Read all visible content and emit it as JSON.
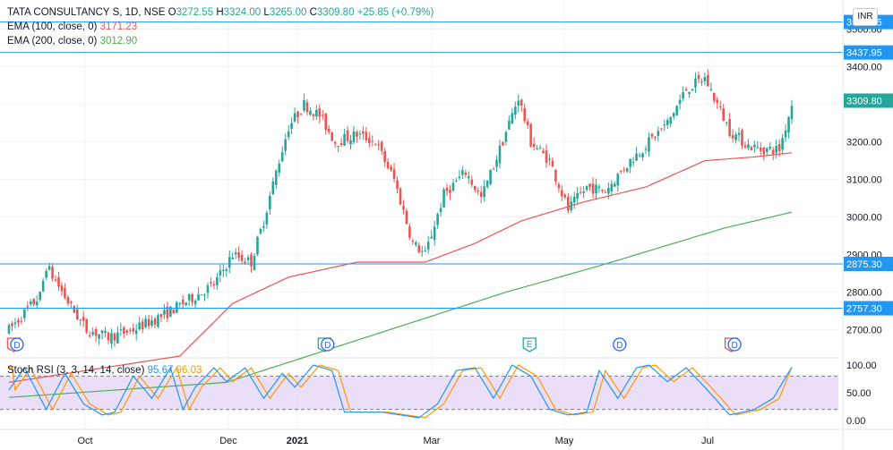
{
  "header": {
    "symbol": "TATA CONSULTANCY S, 1D, NSE",
    "ohlc": {
      "open_label": "O",
      "open": "3272.55",
      "high_label": "H",
      "high": "3324.00",
      "low_label": "L",
      "low": "3265.00",
      "close_label": "C",
      "close": "3309.80",
      "change": "+25.85 (+0.79%)"
    },
    "ema100": {
      "label": "EMA (100, close, 0)",
      "value": "3171.23"
    },
    "ema200": {
      "label": "EMA (200, close, 0)",
      "value": "3012.90"
    }
  },
  "currency": "INR",
  "stoch": {
    "label": "Stoch RSI (3, 3, 14, 14, close)",
    "k": "95.67",
    "d": "96.03"
  },
  "colors": {
    "up": "#26a69a",
    "down": "#ef5350",
    "ema100": "#ef5350",
    "ema200": "#4caf50",
    "hline": "#2196f3",
    "stoch_k": "#2196f3",
    "stoch_d": "#ff9800",
    "stoch_band": "#e6d6f7"
  },
  "chart_data": {
    "type": "candlestick",
    "price_axis": {
      "ylim": [
        2630,
        3530
      ],
      "ticks": [
        "2700.00",
        "2800.00",
        "2900.00",
        "3000.00",
        "3100.00",
        "3200.00",
        "3300.00",
        "3400.00",
        "3500.00"
      ]
    },
    "x_labels": [
      "Oct",
      "Dec",
      "2021",
      "Mar",
      "May",
      "Jul"
    ],
    "horizontal_lines": [
      {
        "value": 3519.05,
        "label": "3519.05"
      },
      {
        "value": 3437.95,
        "label": "3437.95"
      },
      {
        "value": 2875.3,
        "label": "2875.30"
      },
      {
        "value": 2757.3,
        "label": "2757.30"
      }
    ],
    "last_price": {
      "value": 3309.8,
      "label": "3309.80"
    },
    "anchors": [
      [
        0,
        2700
      ],
      [
        10,
        2790
      ],
      [
        12,
        2870
      ],
      [
        15,
        2830
      ],
      [
        20,
        2760
      ],
      [
        25,
        2700
      ],
      [
        32,
        2680
      ],
      [
        40,
        2700
      ],
      [
        50,
        2740
      ],
      [
        60,
        2790
      ],
      [
        66,
        2820
      ],
      [
        72,
        2900
      ],
      [
        78,
        2880
      ],
      [
        82,
        2990
      ],
      [
        86,
        3120
      ],
      [
        90,
        3240
      ],
      [
        95,
        3300
      ],
      [
        100,
        3270
      ],
      [
        105,
        3200
      ],
      [
        112,
        3220
      ],
      [
        118,
        3200
      ],
      [
        124,
        3100
      ],
      [
        130,
        2930
      ],
      [
        134,
        2900
      ],
      [
        140,
        3060
      ],
      [
        147,
        3120
      ],
      [
        152,
        3050
      ],
      [
        158,
        3180
      ],
      [
        164,
        3320
      ],
      [
        168,
        3200
      ],
      [
        174,
        3150
      ],
      [
        180,
        3020
      ],
      [
        186,
        3080
      ],
      [
        192,
        3070
      ],
      [
        200,
        3150
      ],
      [
        206,
        3200
      ],
      [
        212,
        3250
      ],
      [
        218,
        3340
      ],
      [
        224,
        3370
      ],
      [
        228,
        3300
      ],
      [
        232,
        3230
      ],
      [
        238,
        3190
      ],
      [
        242,
        3180
      ],
      [
        248,
        3180
      ],
      [
        252,
        3300
      ]
    ],
    "ema100_points": [
      [
        0,
        2560
      ],
      [
        55,
        2630
      ],
      [
        72,
        2770
      ],
      [
        90,
        2840
      ],
      [
        112,
        2880
      ],
      [
        134,
        2880
      ],
      [
        150,
        2930
      ],
      [
        165,
        2990
      ],
      [
        185,
        3040
      ],
      [
        205,
        3080
      ],
      [
        224,
        3150
      ],
      [
        240,
        3160
      ],
      [
        252,
        3171
      ]
    ],
    "ema200_points": [
      [
        0,
        2520
      ],
      [
        70,
        2560
      ],
      [
        100,
        2640
      ],
      [
        130,
        2720
      ],
      [
        160,
        2800
      ],
      [
        190,
        2870
      ],
      [
        210,
        2920
      ],
      [
        230,
        2970
      ],
      [
        252,
        3013
      ]
    ],
    "event_markers": [
      {
        "index": 1,
        "letter": "E",
        "kind": "earnings-red"
      },
      {
        "index": 2,
        "letter": "D",
        "kind": "dividend"
      },
      {
        "index": 101,
        "letter": "E",
        "kind": "earnings-green"
      },
      {
        "index": 102,
        "letter": "D",
        "kind": "dividend"
      },
      {
        "index": 167,
        "letter": "E",
        "kind": "earnings-green"
      },
      {
        "index": 196,
        "letter": "D",
        "kind": "dividend"
      },
      {
        "index": 232,
        "letter": "E",
        "kind": "earnings-red"
      },
      {
        "index": 233,
        "letter": "D",
        "kind": "dividend"
      }
    ],
    "stoch_axis": {
      "ylim": [
        0,
        100
      ],
      "ticks": [
        "100.00",
        "50.00",
        "0.00"
      ],
      "band": [
        20,
        80
      ]
    },
    "stoch_k_anchors": [
      [
        0,
        55
      ],
      [
        5,
        95
      ],
      [
        12,
        20
      ],
      [
        18,
        85
      ],
      [
        24,
        30
      ],
      [
        30,
        10
      ],
      [
        34,
        15
      ],
      [
        40,
        80
      ],
      [
        46,
        40
      ],
      [
        52,
        95
      ],
      [
        56,
        20
      ],
      [
        60,
        60
      ],
      [
        66,
        95
      ],
      [
        70,
        70
      ],
      [
        76,
        95
      ],
      [
        82,
        40
      ],
      [
        88,
        85
      ],
      [
        92,
        60
      ],
      [
        98,
        100
      ],
      [
        104,
        90
      ],
      [
        108,
        15
      ],
      [
        120,
        15
      ],
      [
        126,
        10
      ],
      [
        132,
        5
      ],
      [
        138,
        30
      ],
      [
        144,
        90
      ],
      [
        150,
        95
      ],
      [
        156,
        40
      ],
      [
        162,
        100
      ],
      [
        168,
        80
      ],
      [
        174,
        20
      ],
      [
        180,
        10
      ],
      [
        186,
        15
      ],
      [
        190,
        90
      ],
      [
        196,
        40
      ],
      [
        202,
        95
      ],
      [
        206,
        100
      ],
      [
        212,
        70
      ],
      [
        218,
        95
      ],
      [
        224,
        60
      ],
      [
        232,
        10
      ],
      [
        240,
        20
      ],
      [
        246,
        40
      ],
      [
        252,
        96
      ]
    ]
  }
}
